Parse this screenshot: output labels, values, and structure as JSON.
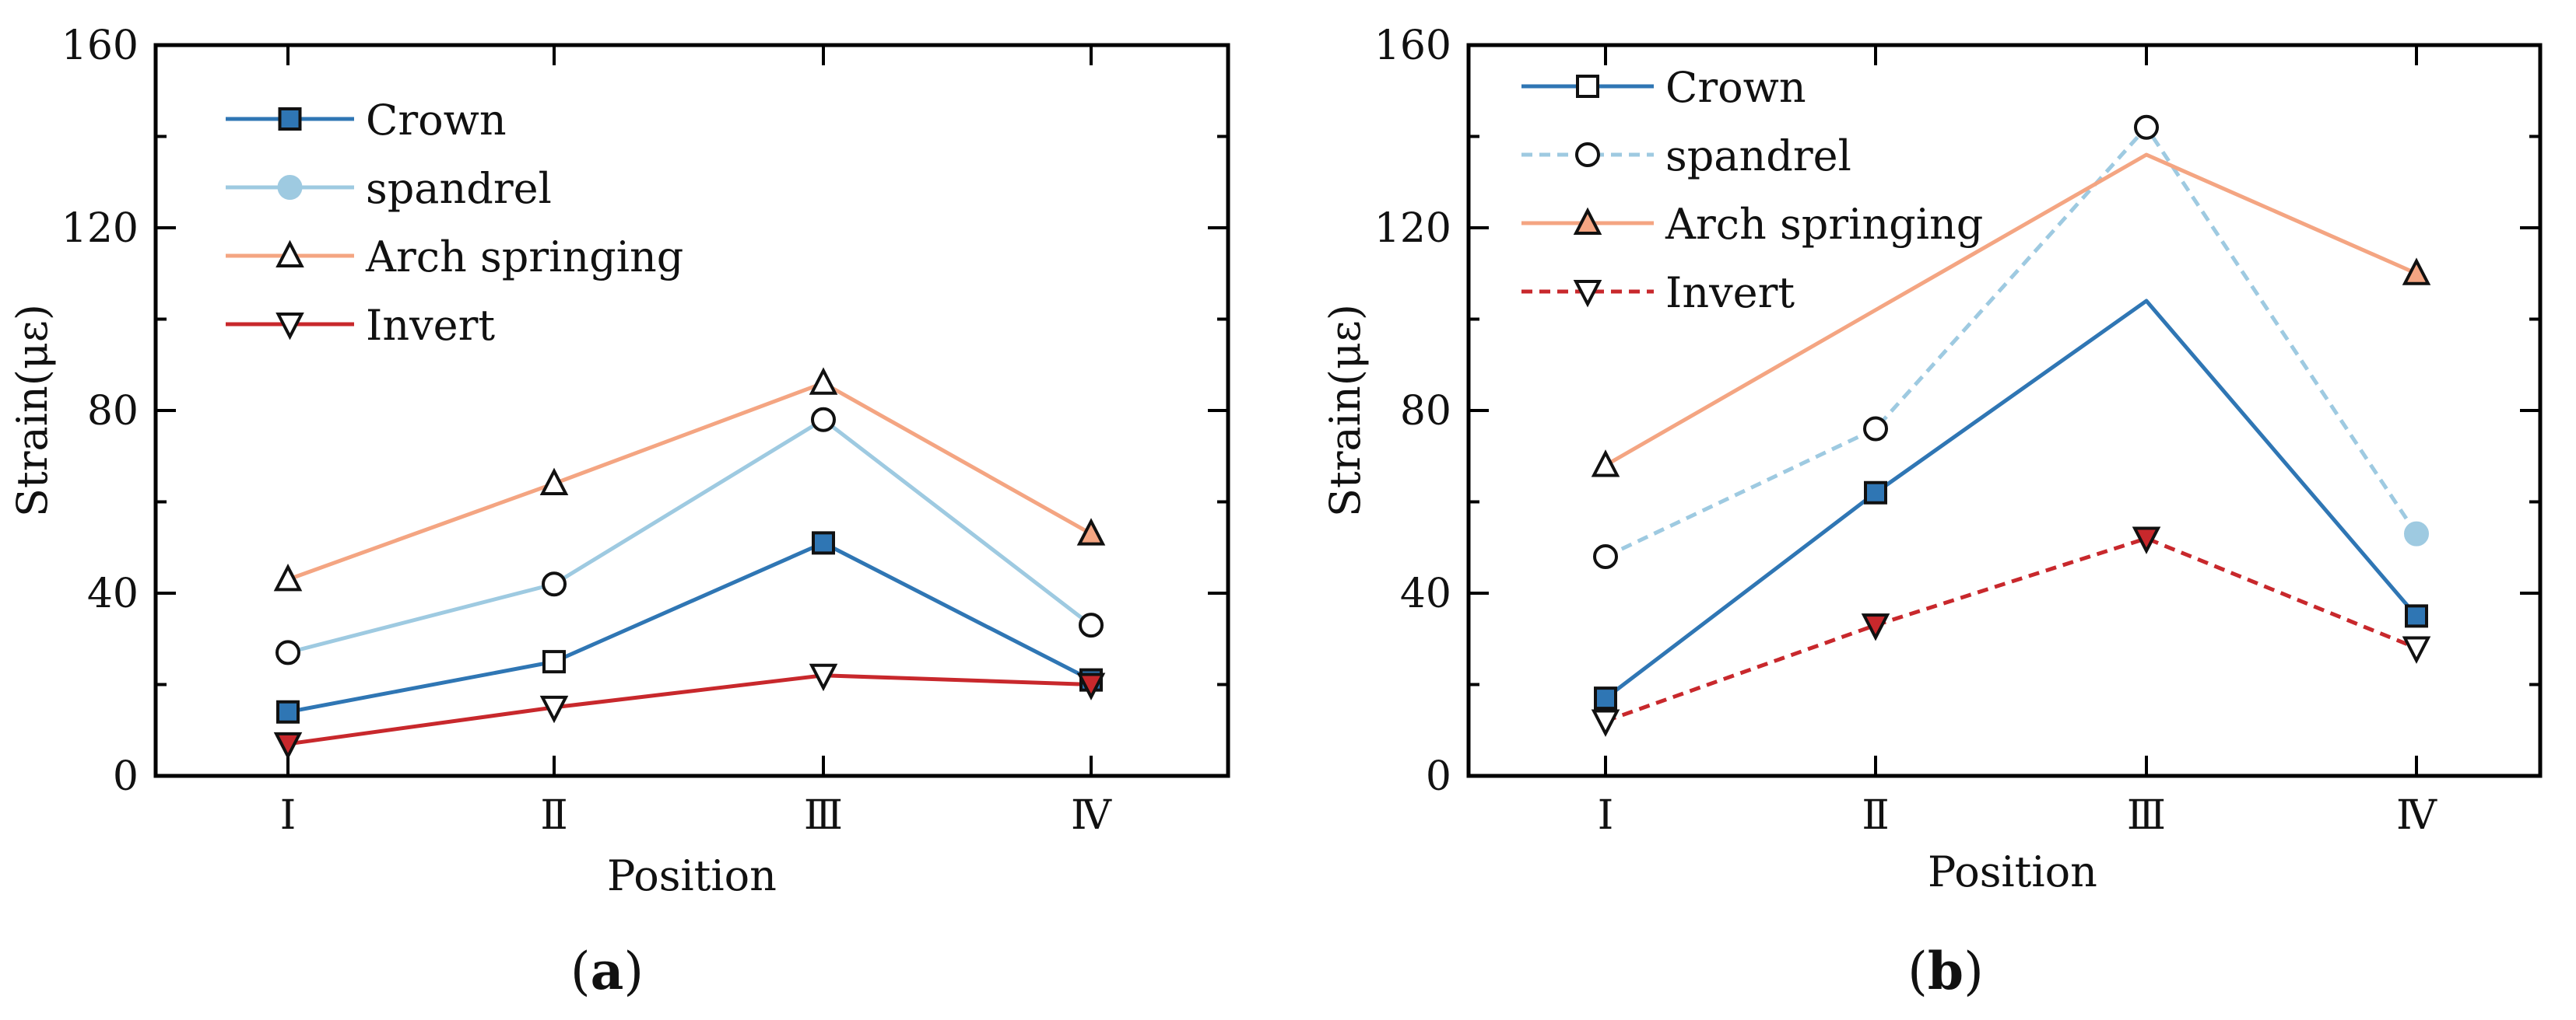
{
  "chart_data": [
    {
      "type": "line",
      "panel_label": "a",
      "categories": [
        "Ⅰ",
        "Ⅱ",
        "Ⅲ",
        "Ⅳ"
      ],
      "xlabel": "Position",
      "ylabel": "Strain(με)",
      "ylim": [
        0,
        160
      ],
      "yticks": [
        0,
        40,
        80,
        120,
        160
      ],
      "legend_position": "top-left",
      "series": [
        {
          "name": "Crown",
          "values": [
            14,
            25,
            51,
            21
          ],
          "color": "#2f76b4",
          "dashed": false,
          "legend_marker": "square",
          "legend_filled": true,
          "point_markers": [
            "square-filled",
            "square-open",
            "square-filled",
            "square-filled"
          ]
        },
        {
          "name": "spandrel",
          "values": [
            27,
            42,
            78,
            33
          ],
          "color": "#9ecae1",
          "dashed": false,
          "legend_marker": "circle",
          "legend_filled": true,
          "point_markers": [
            "circle-open",
            "circle-open",
            "circle-open",
            "circle-open"
          ]
        },
        {
          "name": "Arch springing",
          "values": [
            43,
            64,
            86,
            53
          ],
          "color": "#f4a582",
          "dashed": false,
          "legend_marker": "triangle-up",
          "legend_filled": false,
          "point_markers": [
            "triangle-up-open",
            "triangle-up-open",
            "triangle-up-open",
            "triangle-up-filled"
          ]
        },
        {
          "name": "Invert",
          "values": [
            7,
            15,
            22,
            20
          ],
          "color": "#c8282c",
          "dashed": false,
          "legend_marker": "triangle-down",
          "legend_filled": false,
          "point_markers": [
            "triangle-down-filled",
            "triangle-down-open",
            "triangle-down-open",
            "triangle-down-filled"
          ]
        }
      ]
    },
    {
      "type": "line",
      "panel_label": "b",
      "categories": [
        "Ⅰ",
        "Ⅱ",
        "Ⅲ",
        "Ⅳ"
      ],
      "xlabel": "Position",
      "ylabel": "Strain(με)",
      "ylim": [
        0,
        160
      ],
      "yticks": [
        0,
        40,
        80,
        120,
        160
      ],
      "legend_position": "top-left",
      "series": [
        {
          "name": "Crown",
          "values": [
            17,
            62,
            104,
            35
          ],
          "color": "#2f76b4",
          "dashed": false,
          "legend_marker": "square",
          "legend_filled": false,
          "point_markers": [
            "square-filled",
            "square-filled",
            "none",
            "square-filled"
          ]
        },
        {
          "name": "spandrel",
          "values": [
            48,
            76,
            142,
            53
          ],
          "color": "#9ecae1",
          "dashed": true,
          "legend_marker": "circle",
          "legend_filled": false,
          "point_markers": [
            "circle-open",
            "circle-open",
            "circle-open",
            "circle-filled"
          ]
        },
        {
          "name": "Arch springing",
          "values": [
            68,
            102,
            136,
            110
          ],
          "color": "#f4a582",
          "dashed": false,
          "legend_marker": "triangle-up",
          "legend_filled": true,
          "point_markers": [
            "triangle-up-open",
            "none",
            "none",
            "triangle-up-filled"
          ]
        },
        {
          "name": "Invert",
          "values": [
            12,
            33,
            52,
            28
          ],
          "color": "#c8282c",
          "dashed": true,
          "legend_marker": "triangle-down",
          "legend_filled": false,
          "point_markers": [
            "triangle-down-open",
            "triangle-down-filled",
            "triangle-down-filled",
            "triangle-down-open"
          ]
        }
      ]
    }
  ]
}
